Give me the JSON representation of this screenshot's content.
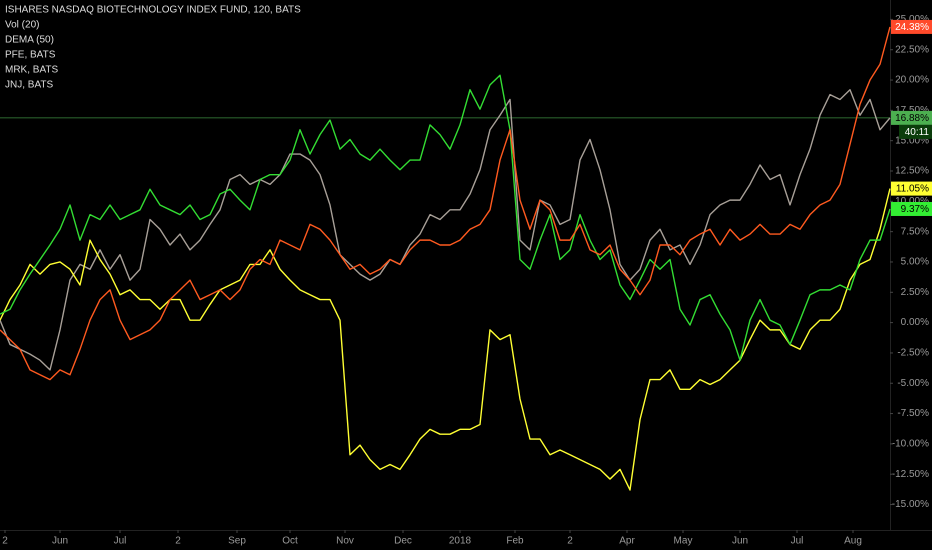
{
  "chart_data": {
    "type": "line",
    "title": "ISHARES NASDAQ BIOTECHNOLOGY INDEX FUND, 120, BATS",
    "indicators": [
      "Vol (20)",
      "DEMA (50)"
    ],
    "countdown": "40:11",
    "xlim": [
      0,
      89
    ],
    "xticks": [
      {
        "value": 0.5,
        "label": "2"
      },
      {
        "value": 6,
        "label": "Jun"
      },
      {
        "value": 12,
        "label": "Jul"
      },
      {
        "value": 17.8,
        "label": "2"
      },
      {
        "value": 23.7,
        "label": "Sep"
      },
      {
        "value": 29,
        "label": "Oct"
      },
      {
        "value": 34.5,
        "label": "Nov"
      },
      {
        "value": 40.3,
        "label": "Dec"
      },
      {
        "value": 46,
        "label": "2018"
      },
      {
        "value": 51.5,
        "label": "Feb"
      },
      {
        "value": 57,
        "label": "2"
      },
      {
        "value": 62.7,
        "label": "Apr"
      },
      {
        "value": 68.3,
        "label": "May"
      },
      {
        "value": 74,
        "label": "Jun"
      },
      {
        "value": 79.7,
        "label": "Jul"
      },
      {
        "value": 85.3,
        "label": "Aug"
      }
    ],
    "ylim": [
      -17.1,
      26.6
    ],
    "yticks": [
      {
        "value": 25,
        "label": "25.00%"
      },
      {
        "value": 22.5,
        "label": "22.50%"
      },
      {
        "value": 20,
        "label": "20.00%"
      },
      {
        "value": 17.5,
        "label": "17.50%"
      },
      {
        "value": 15,
        "label": "15.00%"
      },
      {
        "value": 12.5,
        "label": "12.50%"
      },
      {
        "value": 10,
        "label": "10.00%"
      },
      {
        "value": 7.5,
        "label": "7.50%"
      },
      {
        "value": 5,
        "label": "5.00%"
      },
      {
        "value": 2.5,
        "label": "2.50%"
      },
      {
        "value": 0,
        "label": "0.00%"
      },
      {
        "value": -2.5,
        "label": "-2.50%"
      },
      {
        "value": -5,
        "label": "-5.00%"
      },
      {
        "value": -7.5,
        "label": "-7.50%"
      },
      {
        "value": -10,
        "label": "-10.00%"
      },
      {
        "value": -12.5,
        "label": "-12.50%"
      },
      {
        "value": -15,
        "label": "-15.00%"
      }
    ],
    "grid": false,
    "series": [
      {
        "name": "ISHARES NASDAQ BIOTECHNOLOGY INDEX FUND, 120, BATS",
        "color": "#a8a098",
        "label_color": "#4caf50",
        "last_label": "16.88%",
        "price_line": true,
        "values": [
          0.2,
          -1.8,
          -2.2,
          -2.6,
          -3.1,
          -3.9,
          -0.6,
          3.5,
          4.8,
          4.4,
          6.0,
          4.4,
          5.6,
          3.5,
          4.4,
          8.5,
          7.7,
          6.4,
          7.3,
          6.0,
          6.8,
          8.1,
          9.3,
          11.8,
          12.2,
          11.4,
          11.8,
          11.4,
          12.2,
          13.9,
          13.9,
          13.4,
          12.2,
          9.7,
          5.6,
          4.8,
          4.0,
          3.5,
          4.0,
          5.2,
          4.8,
          6.4,
          7.3,
          8.9,
          8.5,
          9.3,
          9.3,
          10.6,
          12.6,
          15.9,
          17.1,
          18.4,
          6.8,
          6.0,
          10.1,
          9.7,
          8.1,
          8.5,
          13.4,
          15.1,
          12.6,
          9.3,
          4.8,
          3.5,
          4.4,
          6.8,
          7.7,
          6.0,
          6.4,
          4.8,
          6.4,
          8.9,
          9.7,
          10.1,
          10.1,
          11.4,
          13.0,
          11.8,
          12.2,
          9.7,
          12.2,
          14.3,
          17.1,
          18.8,
          18.4,
          19.2,
          17.1,
          18.4,
          15.9,
          16.88
        ]
      },
      {
        "name": "PFE, BATS",
        "color": "#ffff33",
        "label_color": "#ffff33",
        "last_label": "11.05%",
        "values": [
          0.2,
          1.9,
          3.1,
          4.8,
          4.0,
          4.8,
          5.0,
          4.4,
          3.1,
          6.8,
          5.2,
          4.0,
          2.3,
          2.7,
          1.9,
          1.9,
          1.1,
          1.9,
          1.9,
          0.2,
          0.2,
          1.5,
          2.7,
          3.1,
          3.5,
          4.8,
          4.8,
          6.0,
          4.4,
          3.5,
          2.7,
          2.3,
          1.9,
          1.9,
          0.2,
          -10.9,
          -10.1,
          -11.3,
          -12.1,
          -11.7,
          -12.1,
          -10.9,
          -9.6,
          -8.8,
          -9.2,
          -9.2,
          -8.8,
          -8.8,
          -8.4,
          -0.6,
          -1.4,
          -1.0,
          -6.3,
          -9.6,
          -9.6,
          -10.9,
          -10.5,
          -10.9,
          -11.3,
          -11.7,
          -12.1,
          -12.9,
          -12.1,
          -13.8,
          -8.0,
          -4.7,
          -4.7,
          -3.9,
          -5.5,
          -5.5,
          -4.7,
          -5.1,
          -4.7,
          -3.9,
          -3.1,
          -1.4,
          0.2,
          -0.6,
          -0.6,
          -1.8,
          -2.2,
          -0.6,
          0.2,
          0.2,
          1.1,
          3.5,
          4.8,
          5.2,
          7.7,
          11.05
        ]
      },
      {
        "name": "MRK, BATS",
        "color": "#33dd33",
        "label_color": "#33ee33",
        "last_label": "9.37%",
        "values": [
          0.7,
          1.1,
          2.7,
          4.0,
          5.2,
          6.4,
          7.7,
          9.7,
          6.8,
          8.9,
          8.5,
          9.7,
          8.5,
          8.9,
          9.3,
          11.0,
          9.7,
          9.3,
          8.9,
          9.7,
          8.5,
          8.9,
          10.6,
          11.0,
          10.1,
          9.3,
          11.8,
          12.2,
          12.2,
          13.4,
          15.9,
          13.9,
          15.5,
          16.7,
          14.3,
          15.1,
          13.9,
          13.4,
          14.3,
          13.4,
          12.6,
          13.4,
          13.4,
          16.3,
          15.5,
          14.3,
          16.3,
          19.2,
          17.6,
          19.6,
          20.4,
          15.9,
          5.2,
          4.4,
          6.8,
          8.9,
          5.2,
          6.0,
          8.9,
          6.8,
          5.2,
          6.0,
          3.1,
          1.9,
          3.5,
          5.2,
          4.4,
          5.2,
          1.1,
          -0.2,
          1.9,
          2.3,
          0.7,
          -0.6,
          -3.1,
          0.2,
          1.9,
          0.2,
          -0.2,
          -1.8,
          0.2,
          2.3,
          2.7,
          2.7,
          3.1,
          2.7,
          5.2,
          6.8,
          6.8,
          9.37
        ]
      },
      {
        "name": "JNJ, BATS",
        "color": "#ff5a1f",
        "label_color": "#ff4a2a",
        "last_label": "24.38%",
        "values": [
          -0.6,
          -1.4,
          -2.2,
          -3.9,
          -4.3,
          -4.7,
          -3.9,
          -4.3,
          -2.2,
          0.2,
          1.9,
          2.7,
          0.2,
          -1.4,
          -1.0,
          -0.6,
          0.2,
          1.9,
          2.7,
          3.5,
          1.9,
          2.3,
          2.7,
          1.9,
          2.7,
          4.4,
          5.2,
          4.8,
          6.8,
          6.4,
          6.0,
          8.1,
          7.7,
          6.8,
          5.6,
          4.4,
          4.8,
          4.0,
          4.4,
          5.2,
          4.8,
          6.0,
          6.8,
          6.8,
          6.4,
          6.4,
          6.8,
          7.7,
          8.1,
          9.3,
          13.4,
          15.9,
          10.1,
          7.7,
          10.1,
          9.3,
          6.8,
          6.8,
          8.1,
          6.0,
          5.6,
          6.4,
          4.4,
          3.5,
          2.3,
          3.5,
          6.4,
          6.4,
          5.6,
          6.8,
          7.3,
          7.7,
          6.4,
          7.7,
          6.8,
          7.3,
          8.1,
          7.3,
          7.3,
          8.1,
          7.7,
          8.9,
          9.7,
          10.1,
          11.4,
          14.7,
          18.0,
          20.0,
          21.3,
          24.38
        ]
      }
    ]
  }
}
